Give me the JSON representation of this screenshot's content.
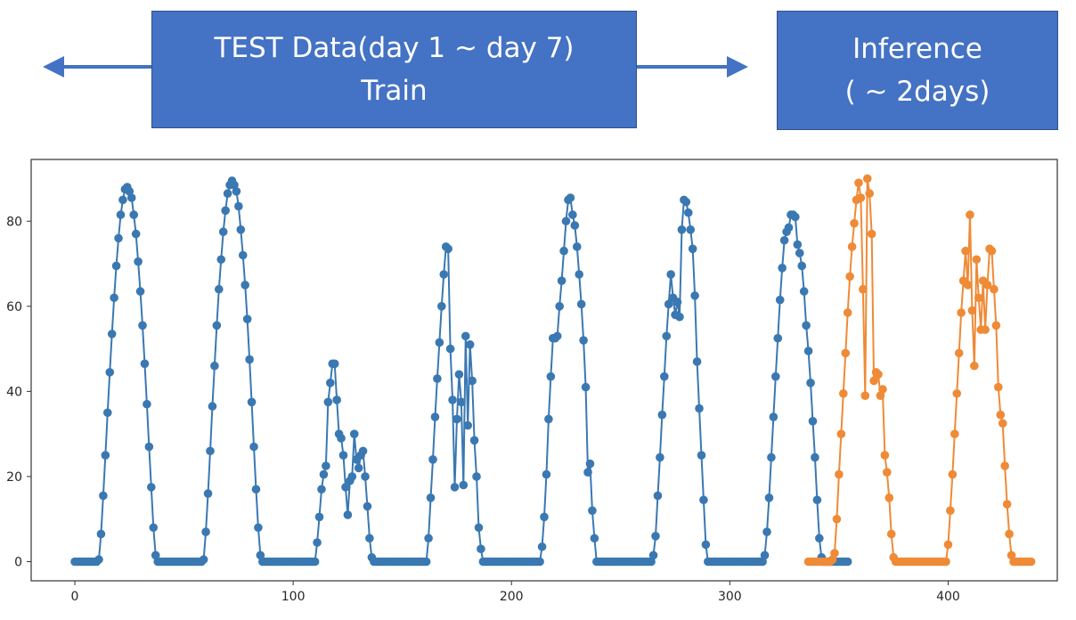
{
  "banners": {
    "train": {
      "line1": "TEST Data(day 1 ~ day 7)",
      "line2": "Train"
    },
    "inference": {
      "line1": "Inference",
      "line2": "( ~ 2days)"
    }
  },
  "colors": {
    "banner_fill": "#4472c4",
    "banner_border": "#2f528f",
    "arrow": "#4472c4",
    "series_test": "#3a78b2",
    "series_inference": "#ef8a36"
  },
  "chart_data": {
    "type": "line",
    "title": "",
    "xlabel": "",
    "ylabel": "",
    "xlim": [
      -20,
      450
    ],
    "ylim": [
      -4.5,
      94.5
    ],
    "xticks": [
      0,
      100,
      200,
      300,
      400
    ],
    "xtick_labels": [
      "0",
      "100",
      "200",
      "300",
      "400"
    ],
    "yticks": [
      0,
      20,
      40,
      60,
      80
    ],
    "ytick_labels": [
      "0",
      "20",
      "40",
      "60",
      "80"
    ],
    "grid": false,
    "markers": true,
    "series": [
      {
        "name": "test",
        "x_start": 0,
        "values": [
          0,
          0,
          0,
          0,
          0,
          0,
          0,
          0,
          0,
          0,
          0,
          0.5,
          6.5,
          15.5,
          25,
          35,
          44.5,
          53.5,
          62,
          69.5,
          76,
          81.5,
          85,
          87.5,
          88,
          87,
          85.5,
          81.5,
          77,
          70.5,
          63.5,
          55.5,
          46.5,
          37,
          27,
          17.5,
          8,
          1.5,
          0,
          0,
          0,
          0,
          0,
          0,
          0,
          0,
          0,
          0,
          0,
          0,
          0,
          0,
          0,
          0,
          0,
          0,
          0,
          0,
          0,
          0.5,
          7,
          16,
          26,
          36.5,
          46,
          55.5,
          64,
          71,
          77.5,
          82.5,
          86.5,
          88.5,
          89.5,
          88.5,
          87,
          83.5,
          78,
          72,
          65,
          57,
          47.5,
          37.5,
          27,
          17,
          8,
          1.5,
          0,
          0,
          0,
          0,
          0,
          0,
          0,
          0,
          0,
          0,
          0,
          0,
          0,
          0,
          0,
          0,
          0,
          0,
          0,
          0,
          0,
          0,
          0,
          0,
          0,
          4.5,
          10.5,
          17,
          20.5,
          22.5,
          37.5,
          42,
          46.5,
          46.5,
          38,
          30,
          29,
          25,
          17.5,
          11,
          19,
          20,
          30,
          24,
          22,
          25,
          26,
          20,
          13,
          5.5,
          1,
          0,
          0,
          0,
          0,
          0,
          0,
          0,
          0,
          0,
          0,
          0,
          0,
          0,
          0,
          0,
          0,
          0,
          0,
          0,
          0,
          0,
          0,
          0,
          0,
          0,
          5.5,
          15,
          24,
          34,
          43,
          51.5,
          60,
          67.5,
          74,
          73.5,
          50,
          38,
          17.5,
          33.5,
          44,
          37.5,
          18,
          53,
          32,
          51,
          42.5,
          28.5,
          20,
          8,
          3,
          0,
          0,
          0,
          0,
          0,
          0,
          0,
          0,
          0,
          0,
          0,
          0,
          0,
          0,
          0,
          0,
          0,
          0,
          0,
          0,
          0,
          0,
          0,
          0,
          0,
          0,
          0,
          3.5,
          10.5,
          20.5,
          33.5,
          43.5,
          52.5,
          52.5,
          53,
          60,
          66,
          73,
          80,
          85,
          85.5,
          81.5,
          79,
          74,
          67.5,
          60.5,
          52,
          41,
          21,
          23,
          12,
          5.5,
          0,
          0,
          0,
          0,
          0,
          0,
          0,
          0,
          0,
          0,
          0,
          0,
          0,
          0,
          0,
          0,
          0,
          0,
          0,
          0,
          0,
          0,
          0,
          0,
          0,
          0,
          1.5,
          6,
          15.5,
          24.5,
          34.5,
          43.5,
          53,
          60.5,
          67.5,
          62,
          58,
          61,
          57.5,
          78,
          85,
          84.5,
          82,
          78,
          73.5,
          62.5,
          47,
          36,
          25,
          14.5,
          4,
          0,
          0,
          0,
          0,
          0,
          0,
          0,
          0,
          0,
          0,
          0,
          0,
          0,
          0,
          0,
          0,
          0,
          0,
          0,
          0,
          0,
          0,
          0,
          0,
          0,
          0,
          1.5,
          7,
          15,
          24.5,
          34,
          43.5,
          52.5,
          61.5,
          69,
          75.5,
          77.5,
          78.5,
          81.5,
          81.5,
          81,
          74.5,
          72.5,
          69.5,
          63.5,
          55.5,
          49.5,
          42,
          33,
          24.5,
          14.5,
          5.5,
          1,
          0,
          0,
          0,
          0,
          0,
          0,
          0,
          0,
          0,
          0,
          0,
          0
        ]
      },
      {
        "name": "inference",
        "x_start": 336,
        "values": [
          0,
          0,
          0,
          0,
          0,
          0,
          0,
          0,
          0,
          0,
          0,
          0.5,
          2,
          10,
          20.5,
          30,
          39.5,
          49,
          58.5,
          67,
          74,
          79.5,
          85,
          89,
          85.5,
          64,
          39,
          90,
          86.5,
          77,
          42.5,
          44.5,
          44,
          39,
          40.5,
          25,
          21,
          15,
          6.5,
          1,
          0,
          0,
          0,
          0,
          0,
          0,
          0,
          0,
          0,
          0,
          0,
          0,
          0,
          0,
          0,
          0,
          0,
          0,
          0,
          0,
          0,
          0,
          0,
          0,
          4,
          12,
          20.5,
          30,
          39.5,
          49,
          58.5,
          66,
          73,
          65,
          81.5,
          59,
          46,
          71,
          62,
          54.5,
          66,
          54.5,
          65,
          73.5,
          73,
          64,
          55.5,
          41,
          34.5,
          32.5,
          22.5,
          13.5,
          6.5,
          1.5,
          0,
          0,
          0,
          0,
          0,
          0,
          0,
          0,
          0
        ]
      }
    ]
  }
}
